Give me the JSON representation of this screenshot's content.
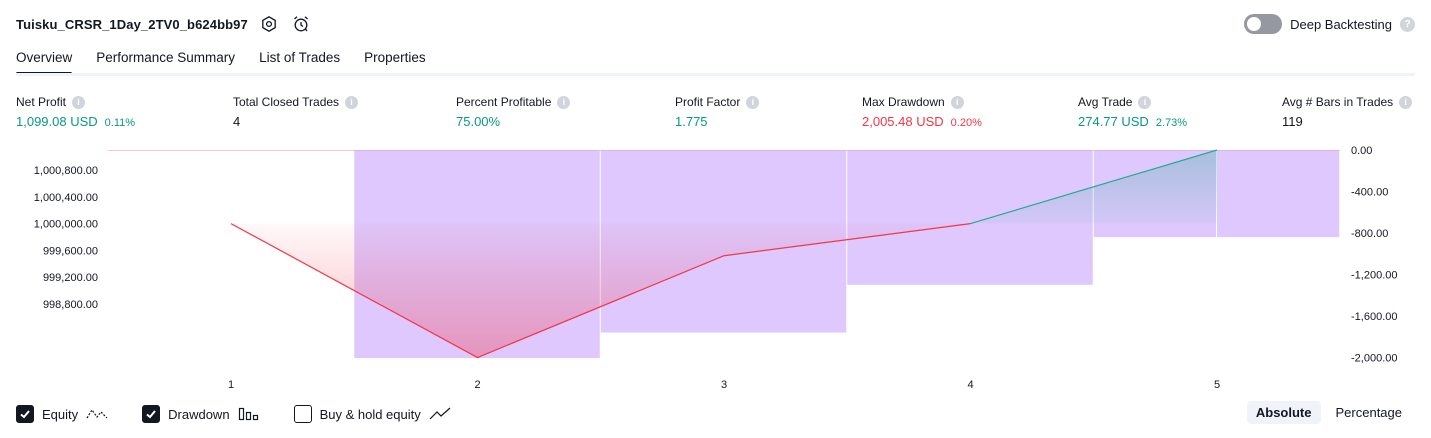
{
  "header": {
    "strategy_name": "Tuisku_CRSR_1Day_2TV0_b624bb97",
    "settings_icon": "gear-icon",
    "alert_icon": "alarm-clock-icon",
    "deep_backtesting_label": "Deep Backtesting",
    "deep_backtesting_enabled": false,
    "help_icon": "?"
  },
  "tabs": [
    {
      "label": "Overview",
      "active": true
    },
    {
      "label": "Performance Summary",
      "active": false
    },
    {
      "label": "List of Trades",
      "active": false
    },
    {
      "label": "Properties",
      "active": false
    }
  ],
  "metrics": [
    {
      "label": "Net Profit",
      "value": "1,099.08 USD",
      "pct": "0.11%",
      "tone": "green"
    },
    {
      "label": "Total Closed Trades",
      "value": "4",
      "pct": "",
      "tone": "dark"
    },
    {
      "label": "Percent Profitable",
      "value": "75.00%",
      "pct": "",
      "tone": "green"
    },
    {
      "label": "Profit Factor",
      "value": "1.775",
      "pct": "",
      "tone": "green"
    },
    {
      "label": "Max Drawdown",
      "value": "2,005.48 USD",
      "pct": "0.20%",
      "tone": "red"
    },
    {
      "label": "Avg Trade",
      "value": "274.77 USD",
      "pct": "2.73%",
      "tone": "green"
    },
    {
      "label": "Avg # Bars in Trades",
      "value": "119",
      "pct": "",
      "tone": "dark"
    }
  ],
  "metric_info_icon": "i",
  "chart_data": {
    "type": "line",
    "x": [
      1,
      2,
      3,
      4,
      5
    ],
    "series": [
      {
        "name": "Equity",
        "values": [
          1000000.0,
          998000.0,
          999520.0,
          1000000.0,
          1001099.08
        ]
      },
      {
        "name": "Drawdown",
        "values": [
          -2005.48,
          -1760.0,
          -1300.0,
          -840.0,
          -840.0
        ]
      }
    ],
    "drawdown_bars": [
      {
        "x_from": 1.5,
        "x_to": 2.5,
        "value": -2005.48
      },
      {
        "x_from": 2.5,
        "x_to": 3.5,
        "value": -1760.0
      },
      {
        "x_from": 3.5,
        "x_to": 4.5,
        "value": -1300.0
      },
      {
        "x_from": 4.5,
        "x_to": 5.0,
        "value": -840.0
      },
      {
        "x_from": 5.0,
        "x_to": 5.5,
        "value": -840.0
      }
    ],
    "left_ticks": [
      "1,000,800.00",
      "1,000,400.00",
      "1,000,000.00",
      "999,600.00",
      "999,200.00",
      "998,800.00"
    ],
    "left_tick_values": [
      1000800,
      1000400,
      1000000,
      999600,
      999200,
      998800
    ],
    "right_ticks": [
      "0.00",
      "-400.00",
      "-800.00",
      "-1,200.00",
      "-1,600.00",
      "-2,000.00"
    ],
    "right_tick_values": [
      0,
      -400,
      -800,
      -1200,
      -1600,
      -2000
    ],
    "x_ticks": [
      "1",
      "2",
      "3",
      "4",
      "5"
    ],
    "left_ylim": [
      997993,
      1001099
    ],
    "right_ylim": [
      -2005.48,
      0
    ],
    "colors": {
      "equity_loss": "#f23645",
      "equity_gain": "#22ab94",
      "drawdown": "#c9a7fb"
    }
  },
  "legend": {
    "items": [
      {
        "label": "Equity",
        "checked": true,
        "icon": "equity-line-icon"
      },
      {
        "label": "Drawdown",
        "checked": true,
        "icon": "drawdown-bars-icon"
      },
      {
        "label": "Buy & hold equity",
        "checked": false,
        "icon": "buy-hold-line-icon"
      }
    ]
  },
  "view_switch": {
    "absolute_label": "Absolute",
    "percentage_label": "Percentage",
    "selected": "Absolute"
  }
}
